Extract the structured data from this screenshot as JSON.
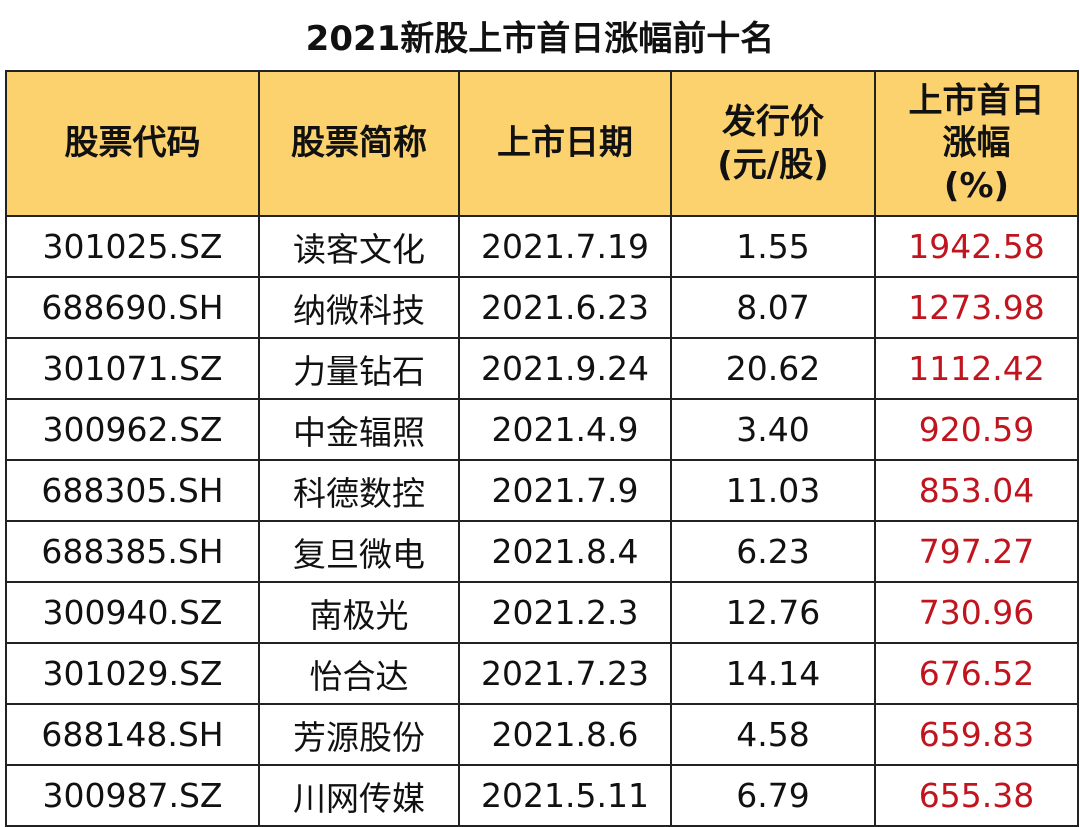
{
  "title": "2021新股上市首日涨幅前十名",
  "colors": {
    "header_bg": "#fcd26e",
    "gain_text": "#c0141e",
    "border": "#222222"
  },
  "table": {
    "headers": [
      [
        "股票代码"
      ],
      [
        "股票简称"
      ],
      [
        "上市日期"
      ],
      [
        "发行价",
        "(元/股)"
      ],
      [
        "上市首日",
        "涨幅",
        "(%)"
      ]
    ],
    "rows": [
      [
        "301025.SZ",
        "读客文化",
        "2021.7.19",
        "1.55",
        "1942.58"
      ],
      [
        "688690.SH",
        "纳微科技",
        "2021.6.23",
        "8.07",
        "1273.98"
      ],
      [
        "301071.SZ",
        "力量钻石",
        "2021.9.24",
        "20.62",
        "1112.42"
      ],
      [
        "300962.SZ",
        "中金辐照",
        "2021.4.9",
        "3.40",
        "920.59"
      ],
      [
        "688305.SH",
        "科德数控",
        "2021.7.9",
        "11.03",
        "853.04"
      ],
      [
        "688385.SH",
        "复旦微电",
        "2021.8.4",
        "6.23",
        "797.27"
      ],
      [
        "300940.SZ",
        "南极光",
        "2021.2.3",
        "12.76",
        "730.96"
      ],
      [
        "301029.SZ",
        "怡合达",
        "2021.7.23",
        "14.14",
        "676.52"
      ],
      [
        "688148.SH",
        "芳源股份",
        "2021.8.6",
        "4.58",
        "659.83"
      ],
      [
        "300987.SZ",
        "川网传媒",
        "2021.5.11",
        "6.79",
        "655.38"
      ]
    ]
  }
}
